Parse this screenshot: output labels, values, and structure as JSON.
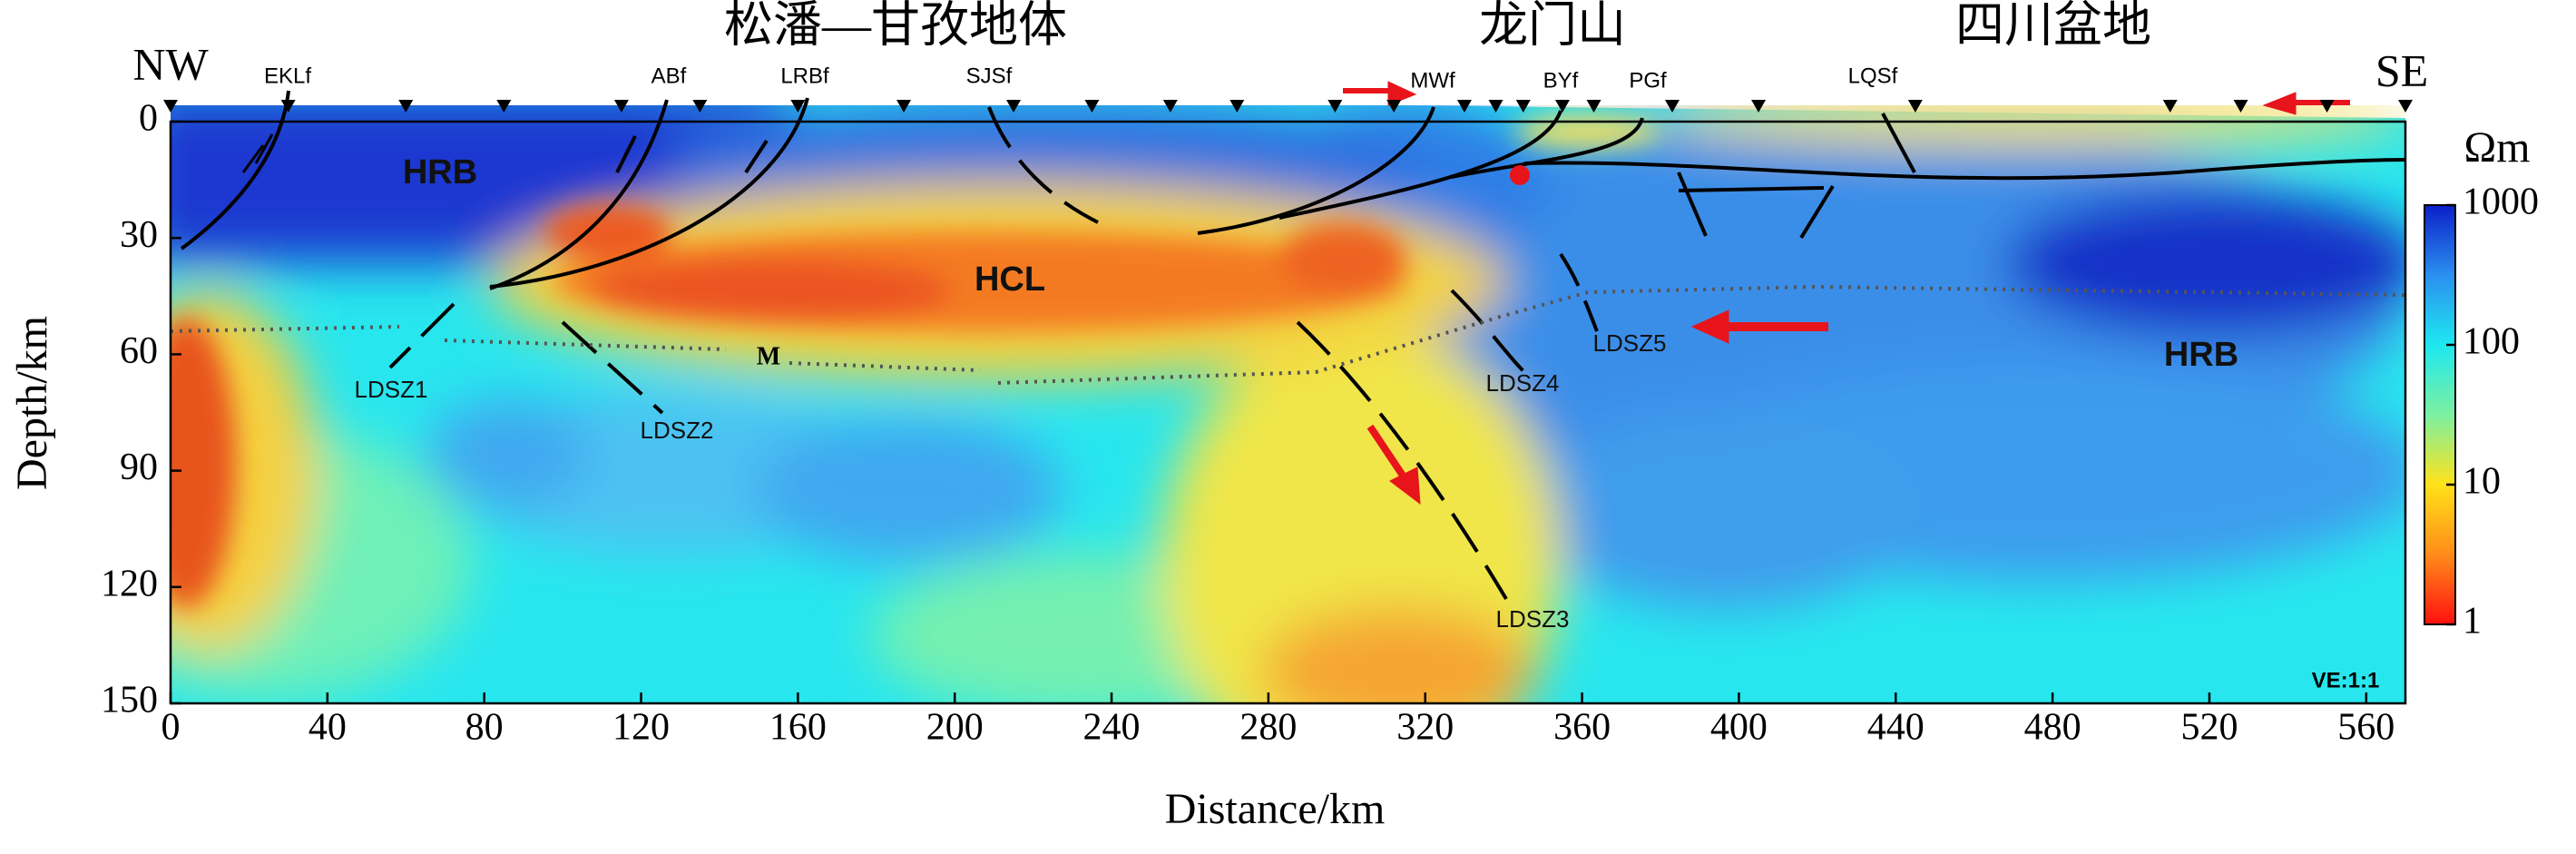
{
  "chart_data": {
    "type": "section",
    "region_labels": [
      "松潘—甘孜地体",
      "龙门山",
      "四川盆地"
    ],
    "directions": [
      "NW",
      "SE"
    ],
    "faults": [
      "EKLf",
      "ABf",
      "LRBf",
      "SJSf",
      "MWf",
      "BYf",
      "PGf",
      "LQSf"
    ],
    "units": [
      "HRB",
      "HCL",
      "HRB"
    ],
    "moho_label": "M",
    "shear_zones": [
      "LDSZ1",
      "LDSZ2",
      "LDSZ3",
      "LDSZ4",
      "LDSZ5"
    ],
    "scale_note": "VE:1:1",
    "xlabel": "Distance/km",
    "ylabel": "Depth/km",
    "xlim": [
      0,
      570
    ],
    "xticks": [
      0,
      40,
      80,
      120,
      160,
      200,
      240,
      280,
      320,
      360,
      400,
      440,
      480,
      520,
      560
    ],
    "ylim": [
      0,
      150
    ],
    "yticks": [
      0,
      30,
      60,
      90,
      120,
      150
    ],
    "y_inverted": true,
    "colorbar": {
      "label": "Ωm",
      "log": true,
      "lim": [
        1,
        1000
      ],
      "ticks": [
        1,
        10,
        100,
        1000
      ],
      "colors": [
        "#ff1010",
        "#ff8c1a",
        "#ffe21a",
        "#7cf0a0",
        "#1ee8f0",
        "#2b8fef",
        "#0b1fc8"
      ]
    }
  }
}
